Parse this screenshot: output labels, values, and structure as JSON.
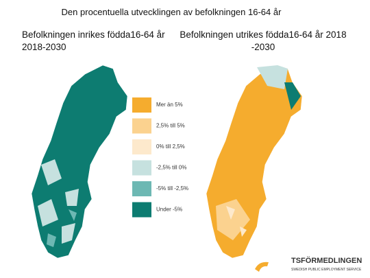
{
  "title": "Den procentuella utvecklingen av befolkningen 16-64 år",
  "maps": [
    {
      "caption": "Befolkningen inrikes födda16-64 år 2018-2030"
    },
    {
      "caption": "Befolkningen utrikes födda16-64 år 2018 -2030"
    }
  ],
  "legend": [
    {
      "label": "Mer än 5%",
      "color": "#f5ac2e"
    },
    {
      "label": "2,5% till 5%",
      "color": "#fbd28f"
    },
    {
      "label": "0% till 2,5%",
      "color": "#fde9cc"
    },
    {
      "label": "-2,5% till 0%",
      "color": "#c6e1df"
    },
    {
      "label": "-5% till -2,5%",
      "color": "#6db8b3"
    },
    {
      "label": "Under -5%",
      "color": "#0d7c71"
    }
  ],
  "logo": {
    "name": "TSFÖRMEDLINGEN",
    "tagline": "SWEDISH PUBLIC EMPLOYMENT SERVICE"
  }
}
